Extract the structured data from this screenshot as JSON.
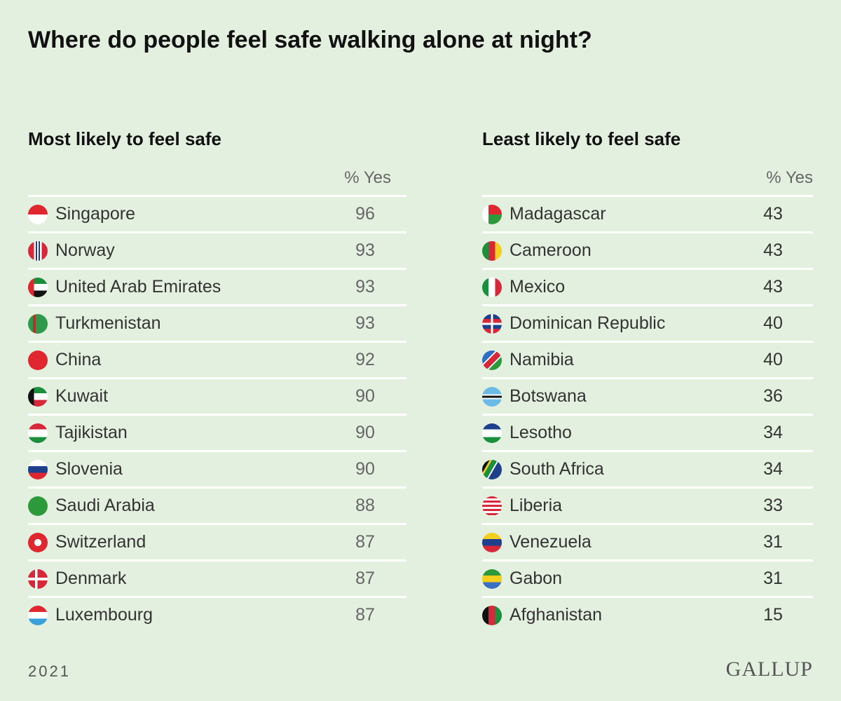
{
  "title": "Where do people feel safe walking alone at night?",
  "tables": [
    {
      "heading": "Most likely to feel safe",
      "column": "% Yes",
      "rows": [
        [
          "Singapore",
          96
        ],
        [
          "Norway",
          93
        ],
        [
          "United Arab Emirates",
          93
        ],
        [
          "Turkmenistan",
          93
        ],
        [
          "China",
          92
        ],
        [
          "Kuwait",
          90
        ],
        [
          "Tajikistan",
          90
        ],
        [
          "Slovenia",
          90
        ],
        [
          "Saudi Arabia",
          88
        ],
        [
          "Switzerland",
          87
        ],
        [
          "Denmark",
          87
        ],
        [
          "Luxembourg",
          87
        ]
      ]
    },
    {
      "heading": "Least likely to feel safe",
      "column": "% Yes",
      "rows": [
        [
          "Madagascar",
          43
        ],
        [
          "Cameroon",
          43
        ],
        [
          "Mexico",
          43
        ],
        [
          "Dominican Republic",
          40
        ],
        [
          "Namibia",
          40
        ],
        [
          "Botswana",
          36
        ],
        [
          "Lesotho",
          34
        ],
        [
          "South Africa",
          34
        ],
        [
          "Liberia",
          33
        ],
        [
          "Venezuela",
          31
        ],
        [
          "Gabon",
          31
        ],
        [
          "Afghanistan",
          15
        ]
      ]
    }
  ],
  "footer": {
    "year": "2021",
    "source": "GALLUP"
  }
}
